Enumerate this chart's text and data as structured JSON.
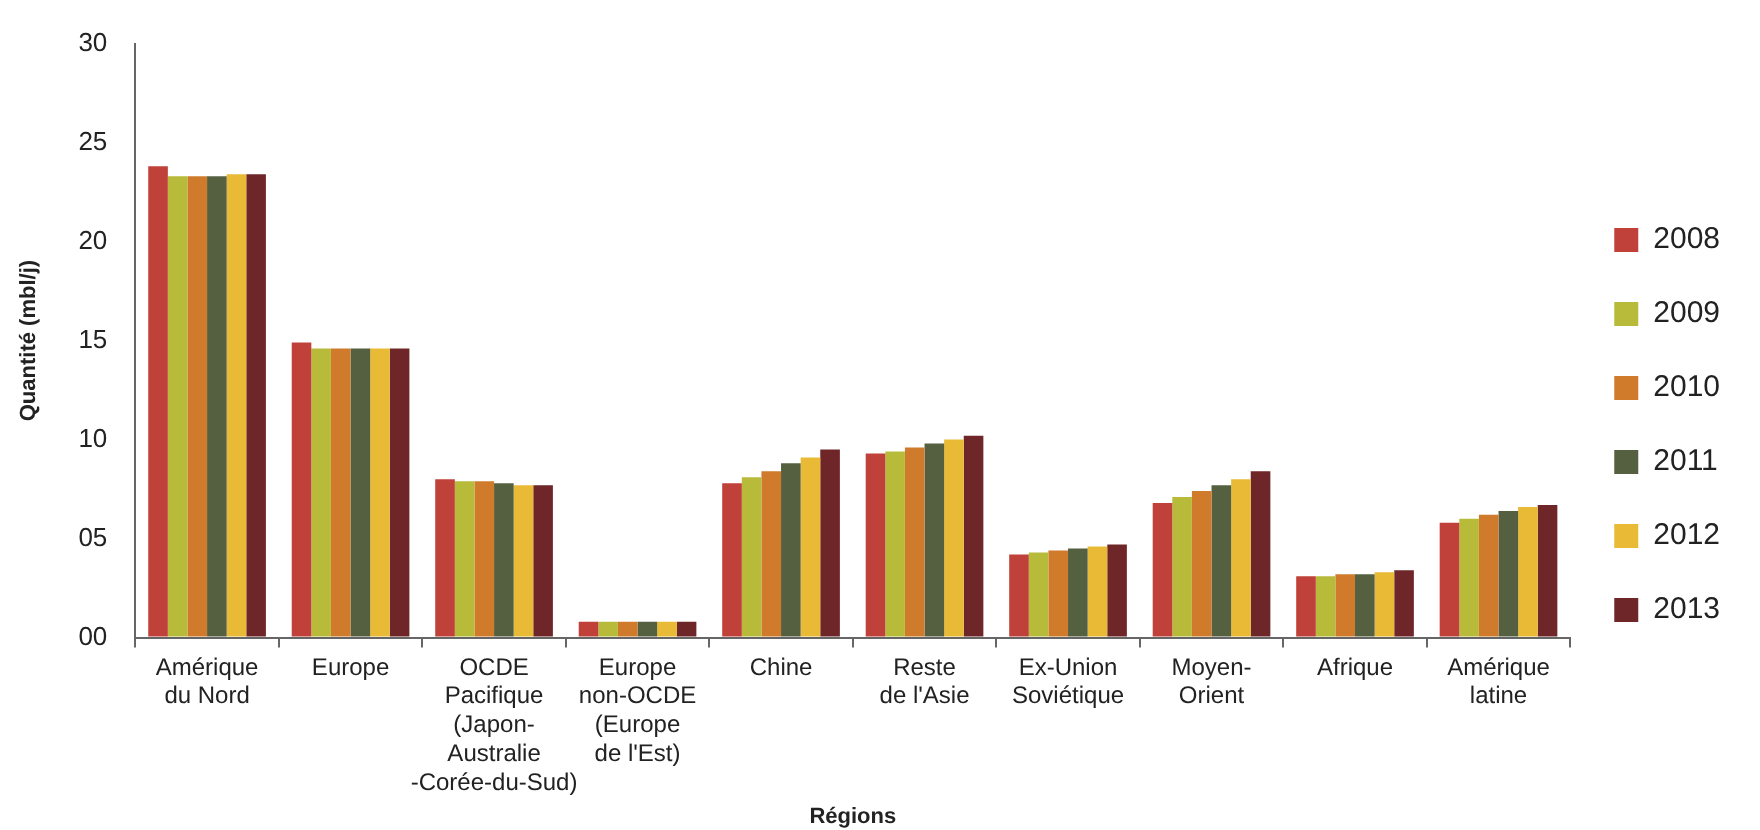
{
  "chart_data": {
    "type": "bar",
    "xlabel": "Régions",
    "ylabel": "Quantité (mbl/j)",
    "categories": [
      "Amérique\ndu Nord",
      "Europe",
      "OCDE\nPacifique\n(Japon-\nAustralie\n-Corée-du-Sud)",
      "Europe\nnon-OCDE\n(Europe\nde l'Est)",
      "Chine",
      "Reste\nde l'Asie",
      "Ex-Union\nSoviétique",
      "Moyen-\nOrient",
      "Afrique",
      "Amérique\nlatine"
    ],
    "series": [
      {
        "name": "2008",
        "color": "#c0413a",
        "values": [
          23.8,
          14.9,
          8.0,
          0.8,
          7.8,
          9.3,
          4.2,
          6.8,
          3.1,
          5.8
        ]
      },
      {
        "name": "2009",
        "color": "#b8bb3a",
        "values": [
          23.3,
          14.6,
          7.9,
          0.8,
          8.1,
          9.4,
          4.3,
          7.1,
          3.1,
          6.0
        ]
      },
      {
        "name": "2010",
        "color": "#d07a2c",
        "values": [
          23.3,
          14.6,
          7.9,
          0.8,
          8.4,
          9.6,
          4.4,
          7.4,
          3.2,
          6.2
        ]
      },
      {
        "name": "2011",
        "color": "#546040",
        "values": [
          23.3,
          14.6,
          7.8,
          0.8,
          8.8,
          9.8,
          4.5,
          7.7,
          3.2,
          6.4
        ]
      },
      {
        "name": "2012",
        "color": "#e9ba35",
        "values": [
          23.4,
          14.6,
          7.7,
          0.8,
          9.1,
          10.0,
          4.6,
          8.0,
          3.3,
          6.6
        ]
      },
      {
        "name": "2013",
        "color": "#6e2628",
        "values": [
          23.4,
          14.6,
          7.7,
          0.8,
          9.5,
          10.2,
          4.7,
          8.4,
          3.4,
          6.7
        ]
      }
    ],
    "ylim": [
      0,
      30
    ],
    "yticks": [
      {
        "value": 0,
        "label": "00"
      },
      {
        "value": 5,
        "label": "05"
      },
      10,
      15,
      20,
      25,
      30
    ],
    "grid": false,
    "legend": "right"
  }
}
